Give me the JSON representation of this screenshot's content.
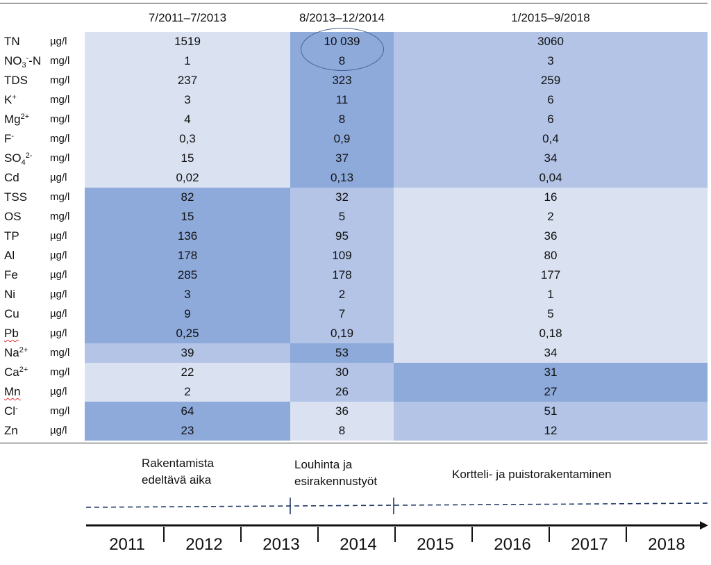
{
  "table": {
    "headers": [
      "7/2011–7/2013",
      "8/2013–12/2014",
      "1/2015–9/2018"
    ],
    "rows": [
      {
        "param": "TN",
        "unit": "µg/l",
        "v1": "1519",
        "v2": "10 039",
        "v3": "3060"
      },
      {
        "param": "NO3--N",
        "unit": "mg/l",
        "v1": "1",
        "v2": "8",
        "v3": "3"
      },
      {
        "param": "TDS",
        "unit": "mg/l",
        "v1": "237",
        "v2": "323",
        "v3": "259"
      },
      {
        "param": "K+",
        "unit": "mg/l",
        "v1": "3",
        "v2": "11",
        "v3": "6"
      },
      {
        "param": "Mg2+",
        "unit": "mg/l",
        "v1": "4",
        "v2": "8",
        "v3": "6"
      },
      {
        "param": "F-",
        "unit": "mg/l",
        "v1": "0,3",
        "v2": "0,9",
        "v3": "0,4"
      },
      {
        "param": "SO42-",
        "unit": "mg/l",
        "v1": "15",
        "v2": "37",
        "v3": "34"
      },
      {
        "param": "Cd",
        "unit": "µg/l",
        "v1": "0,02",
        "v2": "0,13",
        "v3": "0,04"
      },
      {
        "param": "TSS",
        "unit": "mg/l",
        "v1": "82",
        "v2": "32",
        "v3": "16"
      },
      {
        "param": "OS",
        "unit": "mg/l",
        "v1": "15",
        "v2": "5",
        "v3": "2"
      },
      {
        "param": "TP",
        "unit": "µg/l",
        "v1": "136",
        "v2": "95",
        "v3": "36"
      },
      {
        "param": "Al",
        "unit": "µg/l",
        "v1": "178",
        "v2": "109",
        "v3": "80"
      },
      {
        "param": "Fe",
        "unit": "µg/l",
        "v1": "285",
        "v2": "178",
        "v3": "177"
      },
      {
        "param": "Ni",
        "unit": "µg/l",
        "v1": "3",
        "v2": "2",
        "v3": "1"
      },
      {
        "param": "Cu",
        "unit": "µg/l",
        "v1": "9",
        "v2": "7",
        "v3": "5"
      },
      {
        "param": "Pb",
        "unit": "µg/l",
        "v1": "0,25",
        "v2": "0,19",
        "v3": "0,18"
      },
      {
        "param": "Na2+",
        "unit": "mg/l",
        "v1": "39",
        "v2": "53",
        "v3": "34"
      },
      {
        "param": "Ca2+",
        "unit": "mg/l",
        "v1": "22",
        "v2": "30",
        "v3": "31"
      },
      {
        "param": "Mn",
        "unit": "µg/l",
        "v1": "2",
        "v2": "26",
        "v3": "27"
      },
      {
        "param": "Cl-",
        "unit": "mg/l",
        "v1": "64",
        "v2": "36",
        "v3": "51"
      },
      {
        "param": "Zn",
        "unit": "µg/l",
        "v1": "23",
        "v2": "8",
        "v3": "12"
      }
    ]
  },
  "colors": {
    "light": "#dae1f1",
    "medium": "#b3c4e6",
    "dark": "#8eaadb",
    "ellipse": "#41608f"
  },
  "timeline": {
    "phases": [
      {
        "line1": "Rakentamista",
        "line2": "edeltävä aika"
      },
      {
        "line1": "Louhinta ja",
        "line2": "esirakennustyöt"
      },
      {
        "line1": "Kortteli- ja puistorakentaminen",
        "line2": ""
      }
    ],
    "years": [
      "2011",
      "2012",
      "2013",
      "2014",
      "2015",
      "2016",
      "2017",
      "2018"
    ]
  }
}
